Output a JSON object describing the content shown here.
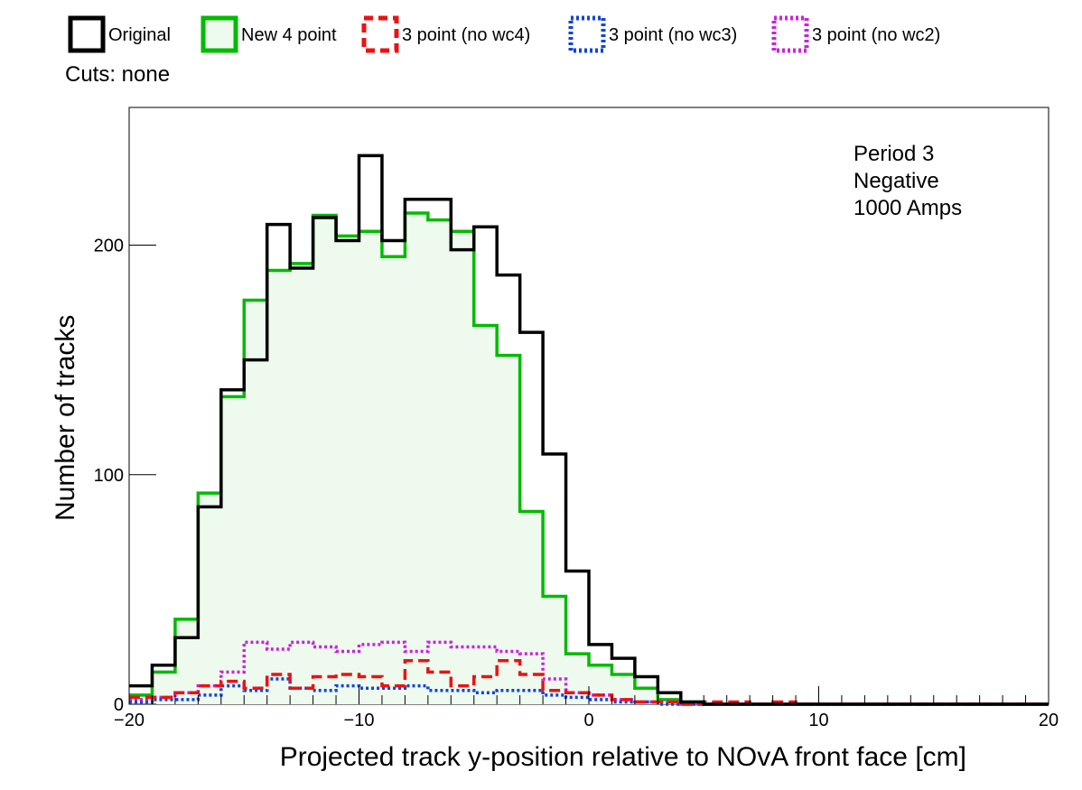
{
  "legend": [
    {
      "label": "Original",
      "color": "#000000",
      "style": "solid"
    },
    {
      "label": "New 4 point",
      "color": "#00bb00",
      "style": "solid"
    },
    {
      "label": "3 point (no wc4)",
      "color": "#ee1111",
      "style": "dashed"
    },
    {
      "label": "3 point (no wc3)",
      "color": "#1144dd",
      "style": "dotted"
    },
    {
      "label": "3 point (no wc2)",
      "color": "#cc22dd",
      "style": "dotted"
    }
  ],
  "cuts_label": "Cuts: none",
  "annotation": [
    "Period 3",
    "Negative",
    "1000 Amps"
  ],
  "chart_data": {
    "type": "bar",
    "histogram": true,
    "xlabel": "Projected track y-position relative to NOvA front face [cm]",
    "ylabel": "Number of tracks",
    "xlim": [
      -20,
      20
    ],
    "ylim": [
      0,
      260
    ],
    "x_ticks": [
      "−20",
      "−10",
      "0",
      "10",
      "20"
    ],
    "x_tick_values": [
      -20,
      -10,
      0,
      10,
      20
    ],
    "y_ticks": [
      "0",
      "100",
      "200"
    ],
    "y_tick_values": [
      0,
      100,
      200
    ],
    "bin_edges": [
      -20,
      -19,
      -18,
      -17,
      -16,
      -15,
      -14,
      -13,
      -12,
      -11,
      -10,
      -9,
      -8,
      -7,
      -6,
      -5,
      -4,
      -3,
      -2,
      -1,
      0,
      1,
      2,
      3,
      4,
      5,
      6,
      7,
      8,
      9,
      10,
      11,
      12,
      13,
      14,
      15,
      16,
      17,
      18,
      19,
      20
    ],
    "series": [
      {
        "name": "Original",
        "color": "#000000",
        "style": "solid",
        "values": [
          8,
          17,
          29,
          86,
          137,
          150,
          209,
          190,
          212,
          202,
          239,
          202,
          220,
          220,
          198,
          208,
          187,
          162,
          109,
          58,
          26,
          20,
          12,
          5,
          1,
          0,
          0,
          0,
          0,
          0,
          0,
          0,
          0,
          0,
          0,
          0,
          0,
          0,
          0,
          0
        ]
      },
      {
        "name": "New 4 point",
        "color": "#00bb00",
        "style": "solid",
        "fill": "#eefaee",
        "values": [
          4,
          14,
          37,
          92,
          134,
          176,
          189,
          192,
          213,
          204,
          206,
          195,
          214,
          211,
          206,
          165,
          152,
          84,
          47,
          22,
          17,
          13,
          7,
          2,
          1,
          0,
          0,
          0,
          0,
          0,
          0,
          0,
          0,
          0,
          0,
          0,
          0,
          0,
          0,
          0
        ]
      },
      {
        "name": "3 point (no wc4)",
        "color": "#ee1111",
        "style": "dashed",
        "values": [
          3,
          3,
          5,
          8,
          10,
          7,
          13,
          7,
          12,
          13,
          12,
          8,
          19,
          14,
          8,
          12,
          19,
          13,
          6,
          5,
          4,
          2,
          1,
          1,
          0,
          1,
          1,
          0,
          1,
          0,
          0,
          0,
          0,
          0,
          0,
          0,
          0,
          0,
          0,
          0
        ]
      },
      {
        "name": "3 point (no wc3)",
        "color": "#1144dd",
        "style": "dotted",
        "values": [
          1,
          2,
          2,
          4,
          8,
          6,
          11,
          7,
          6,
          8,
          7,
          7,
          8,
          6,
          6,
          5,
          6,
          6,
          4,
          3,
          2,
          1,
          1,
          0,
          0,
          0,
          0,
          0,
          0,
          0,
          0,
          0,
          0,
          0,
          0,
          0,
          0,
          0,
          0,
          0
        ]
      },
      {
        "name": "3 point (no wc2)",
        "color": "#cc22dd",
        "style": "dotted",
        "values": [
          2,
          3,
          5,
          8,
          14,
          27,
          24,
          27,
          25,
          23,
          26,
          27,
          23,
          27,
          25,
          25,
          23,
          22,
          11,
          5,
          4,
          2,
          1,
          1,
          0,
          0,
          0,
          0,
          0,
          0,
          0,
          0,
          0,
          0,
          0,
          0,
          0,
          0,
          0,
          0
        ]
      }
    ]
  }
}
